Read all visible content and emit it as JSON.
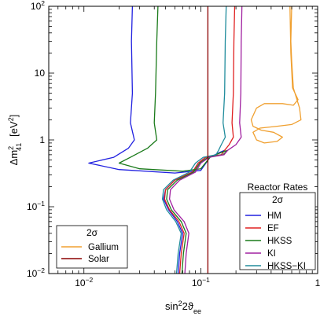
{
  "chart_data": {
    "type": "line",
    "x_scale": "log",
    "y_scale": "log",
    "xlim": [
      0.005,
      1
    ],
    "ylim": [
      0.01,
      100
    ],
    "xlabel_base": "sin",
    "xlabel_sup": "2",
    "xlabel_tail": "2ϑ",
    "xlabel_sub": "ee",
    "ylabel_prefix": "Δm",
    "ylabel_sup": "2",
    "ylabel_sub": "41",
    "ylabel_unit_open": "[eV",
    "ylabel_unit_sup": "2",
    "ylabel_unit_close": "]",
    "x_ticks": [
      {
        "value": 0.01,
        "base": "10",
        "exp": "−2"
      },
      {
        "value": 0.1,
        "base": "10",
        "exp": "−1"
      },
      {
        "value": 1,
        "text": "1"
      }
    ],
    "y_ticks": [
      {
        "value": 0.01,
        "base": "10",
        "exp": "−2"
      },
      {
        "value": 0.1,
        "base": "10",
        "exp": "−1"
      },
      {
        "value": 1,
        "text": "1"
      },
      {
        "value": 10,
        "text": "10"
      },
      {
        "value": 100,
        "base": "10",
        "exp": "2"
      }
    ],
    "legend_reactor": {
      "title": "Reactor Rates",
      "subtitle": "2σ",
      "position": "bottom-right",
      "entries": [
        {
          "name": "HM",
          "color": "#2020e0"
        },
        {
          "name": "EF",
          "color": "#e02020"
        },
        {
          "name": "HKSS",
          "color": "#1a7a1a"
        },
        {
          "name": "KI",
          "color": "#a020a0"
        },
        {
          "name": "HKSS−KI",
          "color": "#208c9c"
        }
      ]
    },
    "legend_other": {
      "title": "2σ",
      "position": "bottom-left",
      "entries": [
        {
          "name": "Gallium",
          "color": "#f0a030"
        },
        {
          "name": "Solar",
          "color": "#8b0000"
        }
      ]
    },
    "series": [
      {
        "name": "HM",
        "color": "#2020e0",
        "points": [
          [
            0.026,
            100
          ],
          [
            0.0255,
            30
          ],
          [
            0.026,
            5
          ],
          [
            0.025,
            1.8
          ],
          [
            0.027,
            1.0
          ],
          [
            0.024,
            0.75
          ],
          [
            0.018,
            0.55
          ],
          [
            0.011,
            0.45
          ],
          [
            0.02,
            0.36
          ],
          [
            0.06,
            0.32
          ],
          [
            0.1,
            0.35
          ],
          [
            0.12,
            0.55
          ],
          [
            0.145,
            0.65
          ],
          [
            0.16,
            0.7
          ],
          [
            0.15,
            0.6
          ],
          [
            0.11,
            0.55
          ],
          [
            0.095,
            0.45
          ],
          [
            0.085,
            0.33
          ],
          [
            0.06,
            0.25
          ],
          [
            0.05,
            0.18
          ],
          [
            0.048,
            0.13
          ],
          [
            0.053,
            0.09
          ],
          [
            0.063,
            0.06
          ],
          [
            0.07,
            0.04
          ],
          [
            0.066,
            0.02
          ],
          [
            0.064,
            0.01
          ]
        ]
      },
      {
        "name": "EF",
        "color": "#e02020",
        "points": [
          [
            0.195,
            100
          ],
          [
            0.192,
            30
          ],
          [
            0.19,
            5
          ],
          [
            0.185,
            1.8
          ],
          [
            0.19,
            1.1
          ],
          [
            0.175,
            0.85
          ],
          [
            0.16,
            0.7
          ],
          [
            0.15,
            0.6
          ],
          [
            0.11,
            0.55
          ],
          [
            0.095,
            0.45
          ],
          [
            0.085,
            0.33
          ],
          [
            0.06,
            0.25
          ],
          [
            0.05,
            0.18
          ],
          [
            0.049,
            0.13
          ],
          [
            0.054,
            0.09
          ],
          [
            0.065,
            0.06
          ],
          [
            0.072,
            0.04
          ],
          [
            0.068,
            0.02
          ],
          [
            0.066,
            0.01
          ]
        ]
      },
      {
        "name": "HKSS",
        "color": "#1a7a1a",
        "points": [
          [
            0.043,
            100
          ],
          [
            0.042,
            30
          ],
          [
            0.041,
            5
          ],
          [
            0.04,
            1.8
          ],
          [
            0.042,
            1.0
          ],
          [
            0.035,
            0.75
          ],
          [
            0.025,
            0.55
          ],
          [
            0.02,
            0.45
          ],
          [
            0.03,
            0.37
          ],
          [
            0.07,
            0.34
          ],
          [
            0.1,
            0.37
          ],
          [
            0.12,
            0.55
          ],
          [
            0.15,
            0.65
          ],
          [
            0.17,
            0.7
          ],
          [
            0.155,
            0.6
          ],
          [
            0.115,
            0.55
          ],
          [
            0.098,
            0.45
          ],
          [
            0.087,
            0.33
          ],
          [
            0.063,
            0.25
          ],
          [
            0.052,
            0.18
          ],
          [
            0.051,
            0.13
          ],
          [
            0.056,
            0.09
          ],
          [
            0.068,
            0.06
          ],
          [
            0.075,
            0.04
          ],
          [
            0.071,
            0.02
          ],
          [
            0.069,
            0.01
          ]
        ]
      },
      {
        "name": "KI",
        "color": "#a020a0",
        "points": [
          [
            0.225,
            100
          ],
          [
            0.222,
            30
          ],
          [
            0.22,
            5
          ],
          [
            0.215,
            1.8
          ],
          [
            0.222,
            1.1
          ],
          [
            0.2,
            0.85
          ],
          [
            0.17,
            0.7
          ],
          [
            0.158,
            0.6
          ],
          [
            0.118,
            0.55
          ],
          [
            0.1,
            0.45
          ],
          [
            0.09,
            0.33
          ],
          [
            0.066,
            0.25
          ],
          [
            0.055,
            0.18
          ],
          [
            0.054,
            0.13
          ],
          [
            0.059,
            0.09
          ],
          [
            0.072,
            0.06
          ],
          [
            0.079,
            0.04
          ],
          [
            0.075,
            0.02
          ],
          [
            0.073,
            0.01
          ]
        ]
      },
      {
        "name": "HKSS−KI",
        "color": "#208c9c",
        "points": [
          [
            0.165,
            100
          ],
          [
            0.162,
            30
          ],
          [
            0.16,
            5
          ],
          [
            0.155,
            1.8
          ],
          [
            0.162,
            1.1
          ],
          [
            0.15,
            0.85
          ],
          [
            0.142,
            0.7
          ],
          [
            0.135,
            0.6
          ],
          [
            0.105,
            0.55
          ],
          [
            0.09,
            0.45
          ],
          [
            0.08,
            0.33
          ],
          [
            0.058,
            0.25
          ],
          [
            0.048,
            0.18
          ],
          [
            0.047,
            0.13
          ],
          [
            0.051,
            0.09
          ],
          [
            0.061,
            0.06
          ],
          [
            0.068,
            0.04
          ],
          [
            0.064,
            0.02
          ],
          [
            0.062,
            0.01
          ]
        ]
      },
      {
        "name": "Gallium",
        "color": "#f0a030",
        "points": [
          [
            0.6,
            100
          ],
          [
            0.59,
            30
          ],
          [
            0.6,
            15
          ],
          [
            0.62,
            6
          ],
          [
            0.7,
            3
          ],
          [
            0.72,
            2
          ],
          [
            0.6,
            1.7
          ],
          [
            0.45,
            1.6
          ],
          [
            0.32,
            1.5
          ],
          [
            0.28,
            1.3
          ],
          [
            0.3,
            1.0
          ],
          [
            0.35,
            0.9
          ],
          [
            0.45,
            0.95
          ],
          [
            0.5,
            1.1
          ],
          [
            0.42,
            1.3
          ],
          [
            0.33,
            1.4
          ],
          [
            0.28,
            1.6
          ],
          [
            0.27,
            2.0
          ],
          [
            0.3,
            3.0
          ],
          [
            0.35,
            3.5
          ],
          [
            0.5,
            3.5
          ],
          [
            0.62,
            3.3
          ],
          [
            0.68,
            4.0
          ],
          [
            0.61,
            6
          ],
          [
            0.59,
            20
          ],
          [
            0.58,
            100
          ]
        ]
      },
      {
        "name": "Solar",
        "color": "#8b0000",
        "points": [
          [
            0.115,
            100
          ],
          [
            0.115,
            0.01
          ]
        ]
      }
    ]
  }
}
